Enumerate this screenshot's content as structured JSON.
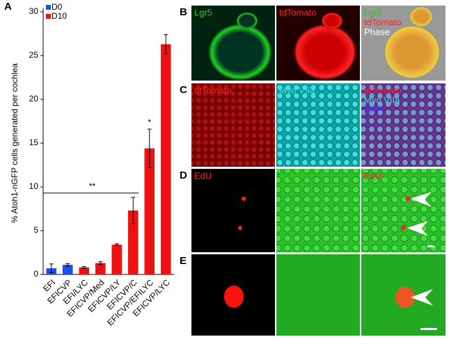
{
  "chart_data": {
    "type": "bar",
    "panel_label": "A",
    "ylabel": "% Atoh1-nGFP cells generated per cochlea",
    "categories": [
      "EFI",
      "EFICVP",
      "EFI/LYC",
      "EFICVP/Med",
      "EFICVP/LY",
      "EFICVP/C",
      "EFICVP/EFILYC",
      "EFICVP/LYC"
    ],
    "series": [
      {
        "name": "D0",
        "color": "#1f4fe8",
        "values": [
          0.7,
          1.1,
          null,
          null,
          null,
          null,
          null,
          null
        ],
        "errors": [
          0.5,
          0.15,
          null,
          null,
          null,
          null,
          null,
          null
        ]
      },
      {
        "name": "D10",
        "color": "#ee1111",
        "values": [
          null,
          null,
          0.8,
          1.3,
          3.4,
          7.3,
          14.4,
          26.3
        ],
        "errors": [
          null,
          null,
          0.1,
          0.15,
          0.1,
          1.5,
          2.2,
          1.1
        ]
      }
    ],
    "ylim": [
      0,
      30
    ],
    "yticks": [
      0,
      5,
      10,
      15,
      20,
      25,
      30
    ],
    "annotations": [
      {
        "text": "**",
        "y": 9.3
      },
      {
        "text": "*",
        "y": 17.3
      }
    ]
  },
  "panels": [
    {
      "label": "B",
      "images": [
        {
          "labels": [
            "Lgr5"
          ]
        },
        {
          "labels": [
            "tdTomato"
          ]
        },
        {
          "labels": [
            "Lgr5",
            "tdTomato",
            "Phase"
          ]
        }
      ]
    },
    {
      "label": "C",
      "images": [
        {
          "labels": [
            "dtTomato"
          ]
        },
        {
          "labels": [
            "Myo VIIa"
          ]
        },
        {
          "labels": [
            "tdTomato",
            "Myo VIIa",
            "DAPI"
          ]
        }
      ]
    },
    {
      "label": "D",
      "images": [
        {
          "labels": [
            "EdU"
          ]
        },
        {
          "labels": [
            "MyoVIIa"
          ]
        },
        {
          "labels": [
            "EdU",
            "Myo VIIa"
          ]
        }
      ]
    },
    {
      "label": "E"
    }
  ]
}
